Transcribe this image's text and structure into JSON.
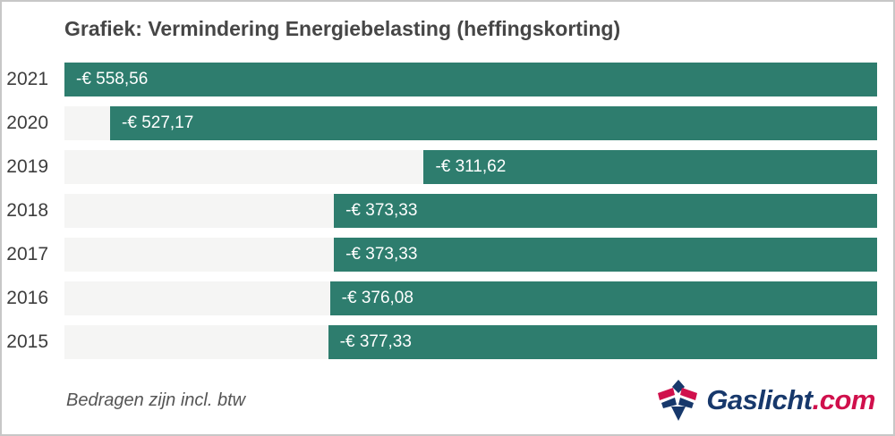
{
  "chart_data": {
    "type": "bar",
    "orientation": "horizontal",
    "bars_right_aligned": true,
    "title": "Grafiek: Vermindering Energiebelasting (heffingskorting)",
    "categories": [
      "2021",
      "2020",
      "2019",
      "2018",
      "2017",
      "2016",
      "2015"
    ],
    "values": [
      -558.56,
      -527.17,
      -311.62,
      -373.33,
      -373.33,
      -376.08,
      -377.33
    ],
    "labels": [
      "-€ 558,56",
      "-€ 527,17",
      "-€ 311,62",
      "-€ 373,33",
      "-€ 373,33",
      "-€ 376,08",
      "-€ 377,33"
    ],
    "value_label_position": "inside-bar-start",
    "xlim_abs": [
      0,
      558.56
    ],
    "grid": false,
    "legend": false,
    "bar_color": "#2e7d6e",
    "track_color": "#f5f5f4",
    "note": "Bedragen zijn incl. btw"
  },
  "logo": {
    "name": "Gaslicht",
    "suffix": ".com",
    "navy": "#17386b",
    "red": "#d0104c"
  }
}
